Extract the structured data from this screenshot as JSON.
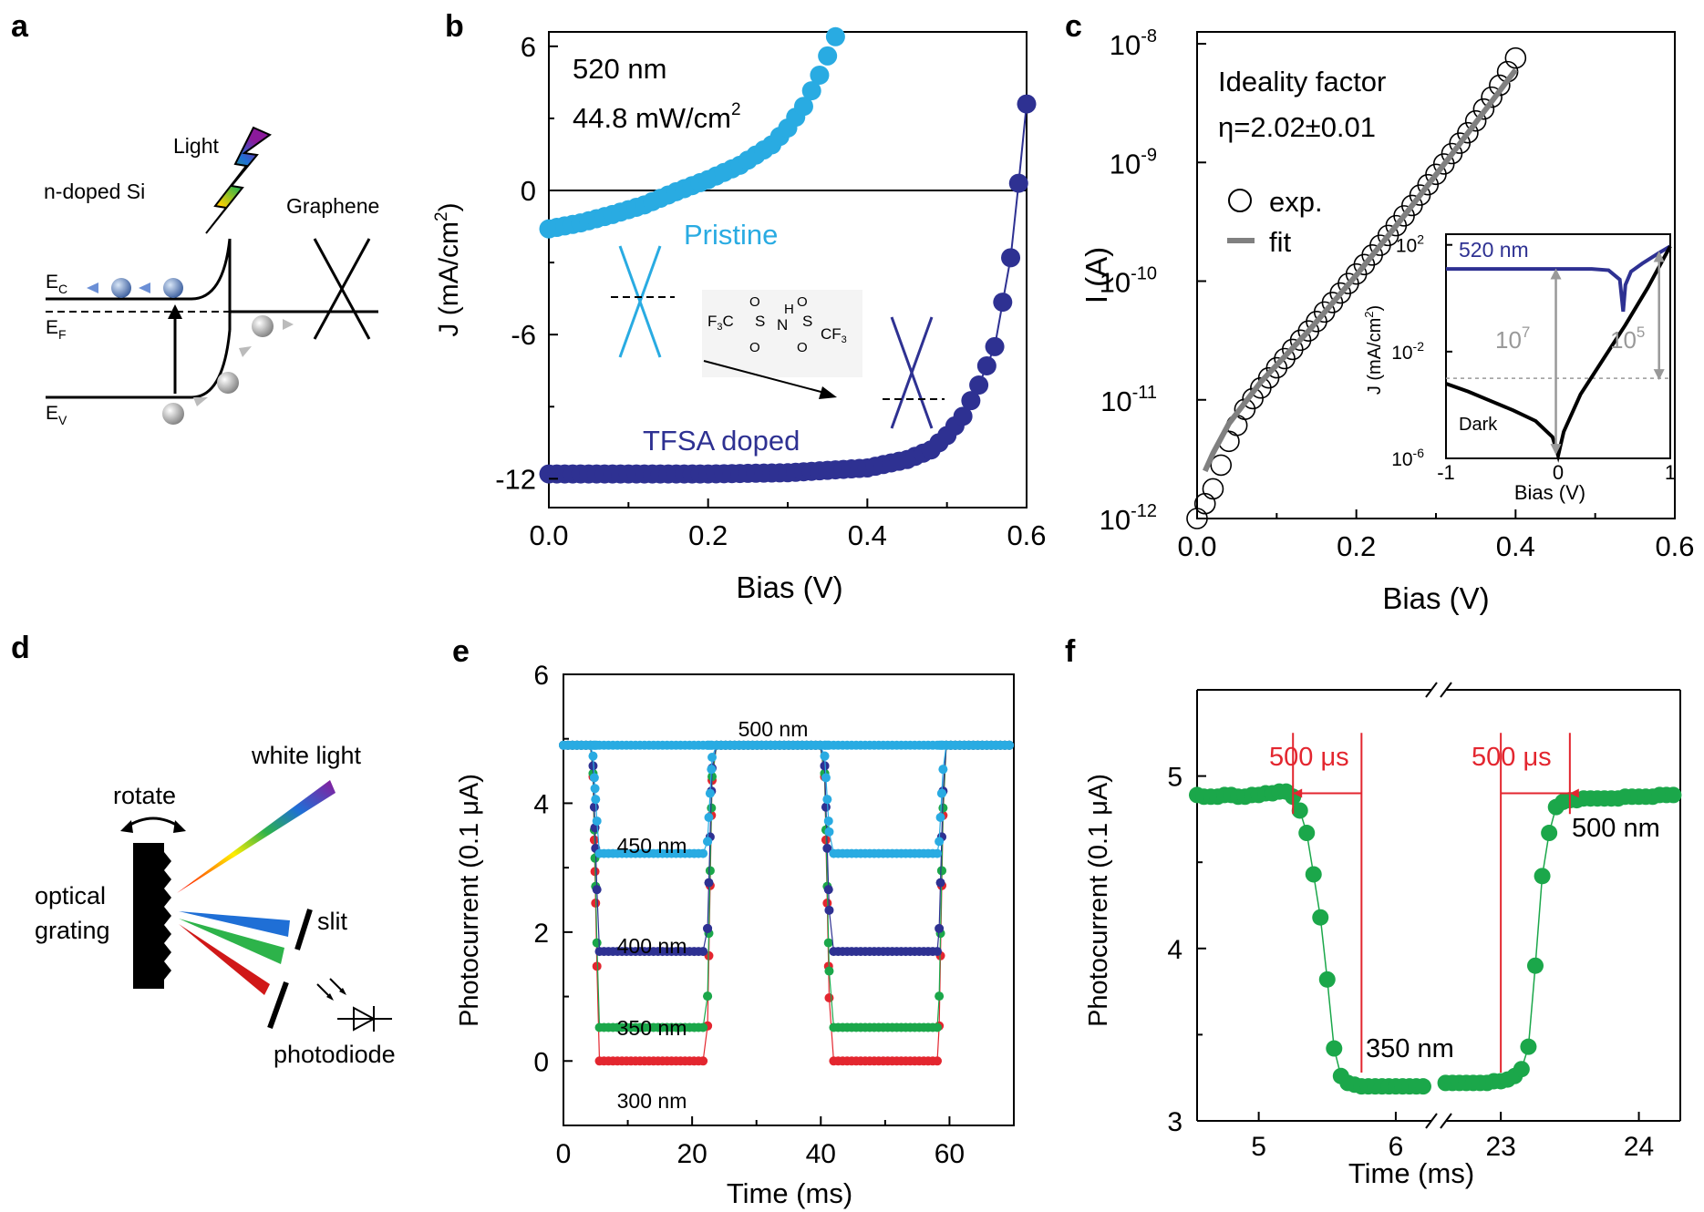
{
  "panel_letters": [
    "a",
    "b",
    "c",
    "d",
    "e",
    "f"
  ],
  "colors": {
    "pristine": "#29ABE2",
    "tfsa": "#2E3192",
    "fit": "#808080",
    "green": "#1BA74A",
    "red": "#E3262F",
    "annot_red": "#E3262F",
    "gray": "#999999"
  },
  "panel_a": {
    "light": "Light",
    "si": "n-doped Si",
    "graphene": "Graphene",
    "ec": "E",
    "ec_sub": "C",
    "ef": "E",
    "ef_sub": "F",
    "ev": "E",
    "ev_sub": "V"
  },
  "panel_d": {
    "rotate": "rotate",
    "white_light": "white light",
    "optical": "optical",
    "grating": "grating",
    "slit": "slit",
    "photodiode": "photodiode"
  },
  "chart_data": [
    {
      "panel": "b",
      "type": "scatter",
      "xlabel": "Bias (V)",
      "ylabel": "J (mA/cm",
      "ylabel_sup": "2",
      "ylabel_end": ")",
      "xlim": [
        0.0,
        0.6
      ],
      "ylim": [
        -13.2,
        6.6
      ],
      "xticks": [
        "0.0",
        "0.2",
        "0.4",
        "0.6"
      ],
      "yticks": [
        "6",
        "0",
        "-6",
        "-12"
      ],
      "annot_wavelength": "520 nm",
      "annot_power": "44.8 mW/cm",
      "annot_power_sup": "2",
      "molecule": {
        "f3c": "F",
        "f3c_sub": "3",
        "c": "C",
        "s1": "S",
        "s2": "S",
        "n": "N",
        "h": "H",
        "o": "O",
        "cf3": "CF",
        "cf3_sub": "3"
      },
      "series": [
        {
          "name": "Pristine",
          "x": [
            0.0,
            0.04,
            0.08,
            0.12,
            0.16,
            0.2,
            0.24,
            0.28,
            0.3,
            0.32,
            0.34,
            0.36
          ],
          "y": [
            -1.6,
            -1.35,
            -1.0,
            -0.6,
            -0.05,
            0.45,
            1.05,
            1.9,
            2.6,
            3.5,
            4.8,
            6.4
          ]
        },
        {
          "name": "TFSA doped",
          "x": [
            0.0,
            0.1,
            0.2,
            0.3,
            0.4,
            0.45,
            0.48,
            0.5,
            0.52,
            0.54,
            0.56,
            0.58,
            0.59,
            0.6
          ],
          "y": [
            -11.8,
            -11.8,
            -11.8,
            -11.75,
            -11.55,
            -11.2,
            -10.8,
            -10.2,
            -9.4,
            -8.1,
            -6.5,
            -2.8,
            0.3,
            3.6
          ]
        }
      ]
    },
    {
      "panel": "c",
      "type": "scatter",
      "xlabel": "Bias (V)",
      "ylabel": "I (A)",
      "xlim": [
        0.0,
        0.6
      ],
      "ylim_log10": [
        -12,
        -7.9
      ],
      "xticks": [
        "0.0",
        "0.2",
        "0.4",
        "0.6"
      ],
      "yticks": [
        "10",
        "10",
        "10",
        "10",
        "10"
      ],
      "yticks_exp": [
        "-8",
        "-9",
        "-10",
        "-11",
        "-12"
      ],
      "annot_title": "Ideality factor",
      "annot_eta": "η=2.02±0.01",
      "legend": [
        "exp.",
        "fit"
      ],
      "series": [
        {
          "name": "exp.",
          "x": [
            0.0,
            0.02,
            0.04,
            0.06,
            0.08,
            0.1,
            0.14,
            0.18,
            0.22,
            0.26,
            0.3,
            0.34,
            0.38,
            0.4
          ],
          "log10_y": [
            -12.0,
            -11.75,
            -11.35,
            -11.08,
            -10.9,
            -10.73,
            -10.42,
            -10.1,
            -9.78,
            -9.45,
            -9.1,
            -8.75,
            -8.35,
            -8.12
          ]
        },
        {
          "name": "fit",
          "x": [
            0.01,
            0.02,
            0.04,
            0.08,
            0.14,
            0.2,
            0.26,
            0.32,
            0.4
          ],
          "log10_y": [
            -11.6,
            -11.45,
            -11.2,
            -10.85,
            -10.42,
            -9.95,
            -9.45,
            -8.93,
            -8.22
          ]
        }
      ],
      "inset": {
        "xlabel": "Bias (V)",
        "ylabel": "J (mA/cm",
        "ylabel_sup": "2",
        "ylabel_end": ")",
        "xlim": [
          -1,
          1
        ],
        "ylim_log10": [
          -6,
          2.4
        ],
        "xticks": [
          "-1",
          "0",
          "1"
        ],
        "yticks": [
          "10",
          "10",
          "10"
        ],
        "yticks_exp": [
          "2",
          "-2",
          "-6"
        ],
        "light_label": "520 nm",
        "dark_label": "Dark",
        "ratio1": "10",
        "ratio1_exp": "7",
        "ratio2": "10",
        "ratio2_exp": "5",
        "series": [
          {
            "name": "520 nm",
            "x": [
              -1.0,
              -0.5,
              0.0,
              0.3,
              0.45,
              0.55,
              0.58,
              0.6,
              0.65,
              0.75,
              0.9,
              1.0
            ],
            "log10_y": [
              1.1,
              1.1,
              1.1,
              1.1,
              1.05,
              0.7,
              -0.5,
              0.5,
              1.0,
              1.3,
              1.7,
              1.95
            ]
          },
          {
            "name": "Dark",
            "x": [
              -1.0,
              -0.8,
              -0.6,
              -0.4,
              -0.2,
              -0.05,
              0.0,
              0.05,
              0.2,
              0.4,
              0.6,
              0.8,
              1.0
            ],
            "log10_y": [
              -3.2,
              -3.5,
              -3.85,
              -4.2,
              -4.6,
              -5.2,
              -5.9,
              -5.0,
              -3.6,
              -2.3,
              -1.0,
              0.4,
              1.95
            ]
          }
        ]
      }
    },
    {
      "panel": "e",
      "type": "scatter",
      "xlabel": "Time (ms)",
      "ylabel": "Photocurrent (0.1 μA)",
      "xlim": [
        0,
        70
      ],
      "ylim": [
        -1,
        6
      ],
      "xticks": [
        "0",
        "20",
        "40",
        "60"
      ],
      "yticks": [
        "6",
        "4",
        "2",
        "0"
      ],
      "high_level": 4.9,
      "on_windows": [
        [
          0,
          4.5
        ],
        [
          23,
          40.5
        ],
        [
          59,
          70
        ]
      ],
      "series": [
        {
          "name": "500 nm",
          "level": 4.9
        },
        {
          "name": "450 nm",
          "level": 3.22
        },
        {
          "name": "400 nm",
          "level": 1.7
        },
        {
          "name": "350 nm",
          "level": 0.52
        },
        {
          "name": "300 nm",
          "level": 0.0
        }
      ]
    },
    {
      "panel": "f",
      "type": "line",
      "xlabel": "Time (ms)",
      "ylabel": "Photocurrent (0.1 μA)",
      "ylim": [
        3,
        5.5
      ],
      "xticks": [
        "5",
        "6",
        "23",
        "24"
      ],
      "yticks": [
        "5",
        "4",
        "3"
      ],
      "annot_left": "500 μs",
      "annot_right": "500 μs",
      "label_low": "350 nm",
      "label_high": "500 nm",
      "series": [
        {
          "name": "350 nm",
          "x": [
            4.55,
            4.6,
            4.65,
            4.7,
            4.75,
            4.8,
            4.85,
            4.9,
            4.95,
            5.0,
            5.05,
            5.1,
            5.15,
            5.2,
            5.25,
            5.3,
            5.35,
            5.4,
            5.45,
            5.5,
            5.55,
            5.6,
            5.65,
            5.7,
            5.75,
            5.8,
            5.85,
            5.9,
            5.95,
            6.0,
            6.05,
            6.1,
            6.15,
            6.2
          ],
          "y": [
            4.89,
            4.88,
            4.88,
            4.88,
            4.89,
            4.89,
            4.88,
            4.88,
            4.89,
            4.89,
            4.9,
            4.9,
            4.91,
            4.91,
            4.88,
            4.8,
            4.67,
            4.43,
            4.18,
            3.82,
            3.42,
            3.26,
            3.22,
            3.21,
            3.2,
            3.2,
            3.2,
            3.2,
            3.2,
            3.2,
            3.2,
            3.2,
            3.2,
            3.2
          ]
        },
        {
          "name": "500 nm",
          "x": [
            22.6,
            22.65,
            22.7,
            22.75,
            22.8,
            22.85,
            22.9,
            22.95,
            23.0,
            23.05,
            23.1,
            23.15,
            23.2,
            23.25,
            23.3,
            23.35,
            23.4,
            23.45,
            23.5,
            23.55,
            23.6,
            23.65,
            23.7,
            23.75,
            23.8,
            23.85,
            23.9,
            23.95,
            24.0,
            24.05,
            24.1,
            24.15,
            24.2,
            24.25
          ],
          "y": [
            3.22,
            3.22,
            3.22,
            3.22,
            3.22,
            3.22,
            3.22,
            3.23,
            3.23,
            3.24,
            3.26,
            3.3,
            3.43,
            3.9,
            4.42,
            4.67,
            4.82,
            4.85,
            4.86,
            4.86,
            4.87,
            4.87,
            4.87,
            4.87,
            4.87,
            4.87,
            4.88,
            4.88,
            4.88,
            4.88,
            4.88,
            4.89,
            4.89,
            4.89
          ]
        }
      ]
    }
  ]
}
